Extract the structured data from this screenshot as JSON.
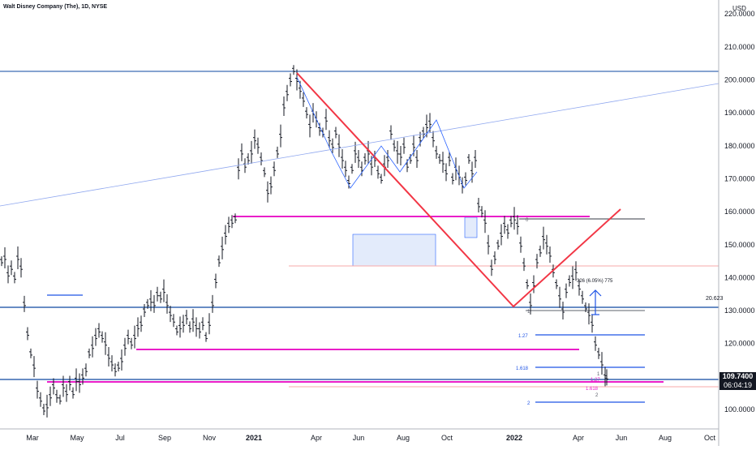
{
  "header": {
    "title": "Walt Disney Company (The), 1D, NYSE",
    "currency": "USD"
  },
  "chart_data": {
    "type": "candlestick",
    "x_ticks": [
      "Mar",
      "May",
      "Jul",
      "Sep",
      "Nov",
      "2021",
      "Apr",
      "Jun",
      "Aug",
      "Oct",
      "2022",
      "Apr",
      "Jun",
      "Aug",
      "Oct"
    ],
    "y_ticks": [
      "100.0000",
      "110.0000",
      "120.0000",
      "130.0000",
      "140.0000",
      "150.0000",
      "160.0000",
      "170.0000",
      "180.0000",
      "190.0000",
      "200.0000",
      "210.0000",
      "220.0000"
    ],
    "ylim": [
      95.5,
      224
    ],
    "last_price": "109.7400",
    "countdown": "06:04:19",
    "marker_20623": "20.623",
    "price_path": [
      [
        2,
        145
      ],
      [
        6,
        146
      ],
      [
        10,
        141
      ],
      [
        14,
        143
      ],
      [
        18,
        140
      ],
      [
        22,
        146
      ],
      [
        26,
        143
      ],
      [
        30,
        132
      ],
      [
        34,
        123
      ],
      [
        38,
        117
      ],
      [
        42,
        113
      ],
      [
        46,
        106
      ],
      [
        50,
        103
      ],
      [
        54,
        100
      ],
      [
        58,
        101
      ],
      [
        62,
        104
      ],
      [
        66,
        107
      ],
      [
        70,
        104
      ],
      [
        74,
        103
      ],
      [
        78,
        107
      ],
      [
        82,
        105
      ],
      [
        86,
        108
      ],
      [
        90,
        105
      ],
      [
        94,
        109
      ],
      [
        98,
        108
      ],
      [
        102,
        110
      ],
      [
        106,
        112
      ],
      [
        110,
        117
      ],
      [
        114,
        119
      ],
      [
        118,
        122
      ],
      [
        122,
        124
      ],
      [
        126,
        122
      ],
      [
        130,
        120
      ],
      [
        134,
        116
      ],
      [
        138,
        114
      ],
      [
        142,
        112
      ],
      [
        146,
        113
      ],
      [
        150,
        115
      ],
      [
        154,
        119
      ],
      [
        158,
        122
      ],
      [
        162,
        120
      ],
      [
        166,
        122
      ],
      [
        170,
        125
      ],
      [
        174,
        126
      ],
      [
        178,
        130
      ],
      [
        182,
        132
      ],
      [
        186,
        133
      ],
      [
        190,
        132
      ],
      [
        194,
        135
      ],
      [
        198,
        134
      ],
      [
        202,
        136
      ],
      [
        206,
        132
      ],
      [
        210,
        129
      ],
      [
        214,
        127
      ],
      [
        218,
        124
      ],
      [
        222,
        125
      ],
      [
        226,
        126
      ],
      [
        230,
        128
      ],
      [
        234,
        125
      ],
      [
        238,
        127
      ],
      [
        242,
        125
      ],
      [
        246,
        124
      ],
      [
        250,
        126
      ],
      [
        254,
        122
      ],
      [
        258,
        126
      ],
      [
        262,
        132
      ],
      [
        266,
        139
      ],
      [
        270,
        145
      ],
      [
        274,
        149
      ],
      [
        278,
        153
      ],
      [
        282,
        156
      ],
      [
        286,
        157
      ],
      [
        290,
        158
      ],
      [
        294,
        173
      ],
      [
        298,
        178
      ],
      [
        302,
        174
      ],
      [
        306,
        176
      ],
      [
        310,
        178
      ],
      [
        314,
        182
      ],
      [
        318,
        180
      ],
      [
        322,
        176
      ],
      [
        326,
        172
      ],
      [
        330,
        166
      ],
      [
        334,
        168
      ],
      [
        338,
        173
      ],
      [
        342,
        178
      ],
      [
        346,
        183
      ],
      [
        350,
        192
      ],
      [
        354,
        196
      ],
      [
        358,
        200
      ],
      [
        362,
        203
      ],
      [
        366,
        200
      ],
      [
        370,
        197
      ],
      [
        374,
        194
      ],
      [
        378,
        190
      ],
      [
        382,
        186
      ],
      [
        386,
        190
      ],
      [
        390,
        188
      ],
      [
        394,
        185
      ],
      [
        398,
        184
      ],
      [
        402,
        188
      ],
      [
        406,
        182
      ],
      [
        410,
        180
      ],
      [
        414,
        184
      ],
      [
        418,
        180
      ],
      [
        422,
        176
      ],
      [
        426,
        173
      ],
      [
        430,
        169
      ],
      [
        434,
        173
      ],
      [
        438,
        178
      ],
      [
        442,
        176
      ],
      [
        446,
        173
      ],
      [
        450,
        176
      ],
      [
        454,
        178
      ],
      [
        458,
        174
      ],
      [
        462,
        176
      ],
      [
        466,
        172
      ],
      [
        470,
        170
      ],
      [
        474,
        174
      ],
      [
        478,
        176
      ],
      [
        482,
        184
      ],
      [
        486,
        180
      ],
      [
        490,
        178
      ],
      [
        494,
        177
      ],
      [
        498,
        180
      ],
      [
        502,
        174
      ],
      [
        506,
        176
      ],
      [
        510,
        180
      ],
      [
        514,
        176
      ],
      [
        518,
        182
      ],
      [
        522,
        184
      ],
      [
        526,
        186
      ],
      [
        530,
        187
      ],
      [
        534,
        182
      ],
      [
        538,
        178
      ],
      [
        542,
        176
      ],
      [
        546,
        175
      ],
      [
        550,
        172
      ],
      [
        554,
        176
      ],
      [
        558,
        170
      ],
      [
        562,
        173
      ],
      [
        566,
        171
      ],
      [
        570,
        168
      ],
      [
        574,
        170
      ],
      [
        578,
        176
      ],
      [
        582,
        172
      ],
      [
        586,
        176
      ],
      [
        590,
        162
      ],
      [
        594,
        160
      ],
      [
        598,
        157
      ],
      [
        602,
        150
      ],
      [
        606,
        143
      ],
      [
        610,
        146
      ],
      [
        614,
        150
      ],
      [
        618,
        153
      ],
      [
        622,
        156
      ],
      [
        626,
        154
      ],
      [
        630,
        157
      ],
      [
        634,
        158
      ],
      [
        638,
        156
      ],
      [
        642,
        150
      ],
      [
        646,
        144
      ],
      [
        650,
        138
      ],
      [
        654,
        132
      ],
      [
        658,
        138
      ],
      [
        662,
        145
      ],
      [
        666,
        148
      ],
      [
        670,
        152
      ],
      [
        674,
        150
      ],
      [
        678,
        147
      ],
      [
        682,
        142
      ],
      [
        686,
        138
      ],
      [
        690,
        134
      ],
      [
        694,
        130
      ],
      [
        698,
        136
      ],
      [
        702,
        139
      ],
      [
        706,
        140
      ],
      [
        710,
        142
      ],
      [
        714,
        137
      ],
      [
        718,
        134
      ],
      [
        722,
        131
      ],
      [
        726,
        129
      ],
      [
        730,
        126
      ],
      [
        734,
        120
      ],
      [
        738,
        117
      ],
      [
        742,
        114
      ],
      [
        746,
        110
      ],
      [
        748,
        109.74
      ]
    ],
    "fib_labels": {
      "zero": "0",
      "one": "1",
      "l1_27": "1.27",
      "l1_618": "1.618",
      "l2": "2",
      "pink_1_618": "1.618",
      "pink_1_27": "1.27",
      "pink_1": "1",
      "pink_2": "2"
    },
    "measure_label": "326 (6.05%) 775"
  }
}
